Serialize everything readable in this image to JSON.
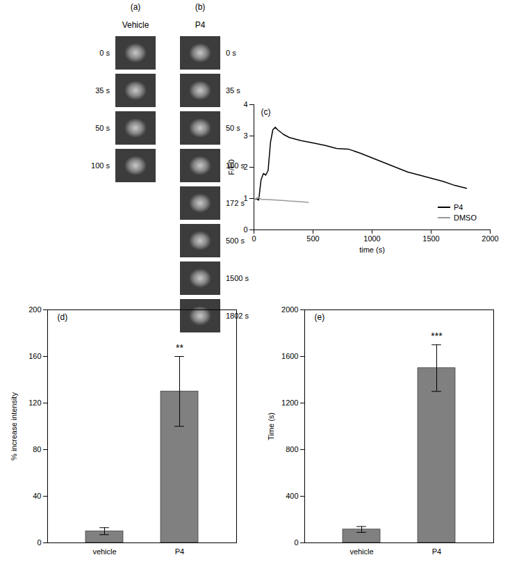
{
  "image_panels": [
    {
      "label": "(a)",
      "title": "Vehicle",
      "frames": [
        "0 s",
        "35 s",
        "50 s",
        "100 s"
      ]
    },
    {
      "label": "(b)",
      "title": "P4",
      "frames": [
        "0 s",
        "35 s",
        "50 s",
        "100 s",
        "172 s",
        "500 s",
        "1500 s",
        "1802 s"
      ]
    }
  ],
  "chart_data": [
    {
      "type": "line",
      "title": "(c)",
      "x_label": "time (s)",
      "y_label": "F/F0",
      "xlim": [
        0,
        2000
      ],
      "xticks": [
        0,
        500,
        1000,
        1500,
        2000
      ],
      "ylim": [
        0,
        4
      ],
      "yticks": [
        0,
        1,
        2,
        3,
        4
      ],
      "legend": "bottom-right",
      "series": [
        {
          "name": "P4",
          "color": "#000000",
          "x": [
            0,
            20,
            40,
            60,
            80,
            100,
            120,
            140,
            160,
            180,
            200,
            250,
            300,
            400,
            500,
            600,
            700,
            800,
            900,
            1000,
            1100,
            1200,
            1300,
            1400,
            1500,
            1600,
            1700,
            1800
          ],
          "values": [
            0.95,
            1.0,
            0.95,
            1.6,
            1.8,
            1.75,
            1.9,
            2.8,
            3.2,
            3.28,
            3.2,
            3.05,
            2.95,
            2.85,
            2.78,
            2.7,
            2.6,
            2.58,
            2.45,
            2.3,
            2.15,
            2.0,
            1.85,
            1.75,
            1.65,
            1.55,
            1.42,
            1.33
          ]
        },
        {
          "name": "DMSO",
          "color": "#999999",
          "x": [
            0,
            20,
            40,
            60,
            100,
            200,
            300,
            400,
            460
          ],
          "values": [
            0.95,
            1.0,
            1.05,
            0.97,
            0.97,
            0.95,
            0.92,
            0.9,
            0.88
          ]
        }
      ]
    },
    {
      "type": "bar",
      "title": "(d)",
      "y_label": "% increase intensity",
      "categories": [
        "vehicle",
        "P4"
      ],
      "values": [
        10,
        130
      ],
      "errors": [
        3,
        30
      ],
      "annotations": [
        "",
        "**"
      ],
      "color": "#808080",
      "ylim": [
        0,
        200
      ],
      "yticks": [
        0,
        40,
        80,
        120,
        160,
        200
      ]
    },
    {
      "type": "bar",
      "title": "(e)",
      "y_label": "Time (s)",
      "categories": [
        "vehicle",
        "P4"
      ],
      "values": [
        115,
        1500
      ],
      "errors": [
        25,
        200
      ],
      "annotations": [
        "",
        "***"
      ],
      "color": "#808080",
      "ylim": [
        0,
        2000
      ],
      "yticks": [
        0,
        400,
        800,
        1200,
        1600,
        2000
      ]
    }
  ]
}
